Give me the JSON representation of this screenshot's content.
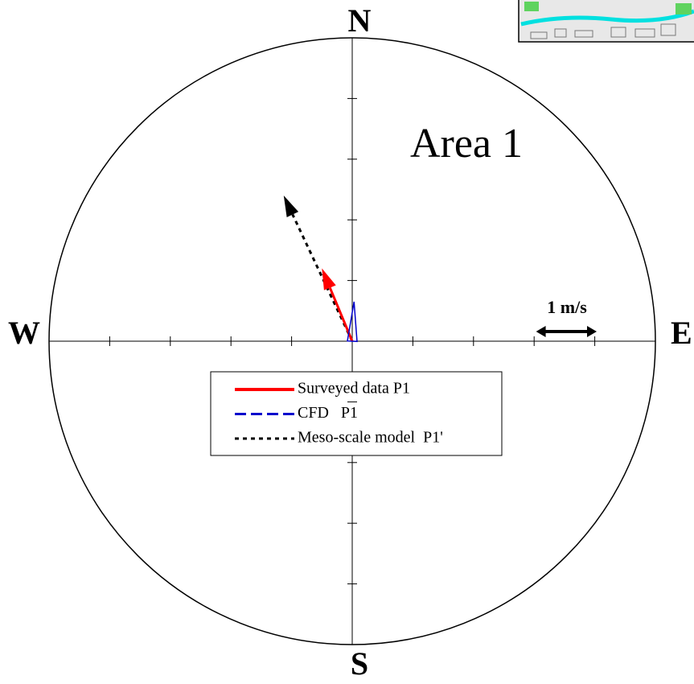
{
  "chart_data": {
    "type": "vector",
    "title": "Area 1",
    "compass": {
      "north": "N",
      "south": "S",
      "east": "E",
      "west": "W"
    },
    "xlim": [
      -5,
      5
    ],
    "ylim": [
      -5,
      5
    ],
    "xticks": [
      -4,
      -3,
      -2,
      -1,
      1,
      2,
      3,
      4
    ],
    "yticks": [
      -4,
      -3,
      -2,
      -1,
      1,
      2,
      3,
      4
    ],
    "scale_key": {
      "label": "1 m/s",
      "value": 1
    },
    "series": [
      {
        "name": "Meso-scale model  P1'",
        "color": "#000000",
        "style": "dotted",
        "u": [
          -1.13
        ],
        "v": [
          2.4
        ]
      },
      {
        "name": "Surveyed data P1",
        "color": "#ff0000",
        "style": "solid",
        "u": [
          -0.5
        ],
        "v": [
          1.2
        ]
      },
      {
        "name": "CFD   P1",
        "color": "#0000cc",
        "style": "dashed",
        "u": [
          0.03
        ],
        "v": [
          0.65
        ]
      }
    ],
    "legend_order": [
      1,
      2,
      0
    ]
  }
}
